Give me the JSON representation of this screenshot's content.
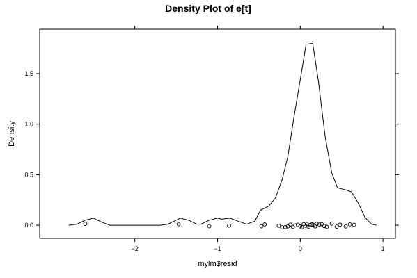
{
  "chart_data": {
    "type": "line",
    "title": "Density Plot of e[t]",
    "xlabel": "mylm$resid",
    "ylabel": "Density",
    "xlim": [
      -3.15,
      1.15
    ],
    "ylim": [
      -0.13,
      1.94
    ],
    "x_ticks": [
      {
        "value": -2,
        "label": "−2"
      },
      {
        "value": -1,
        "label": "−1"
      },
      {
        "value": 0,
        "label": "0"
      },
      {
        "value": 1,
        "label": "1"
      }
    ],
    "y_ticks": [
      {
        "value": 0.0,
        "label": "0.0"
      },
      {
        "value": 0.5,
        "label": "0.5"
      },
      {
        "value": 1.0,
        "label": "1.0"
      },
      {
        "value": 1.5,
        "label": "1.5"
      }
    ],
    "grid": false,
    "series": [
      {
        "kind": "density-line",
        "x": [
          -2.8,
          -2.7,
          -2.6,
          -2.5,
          -2.4,
          -2.3,
          -2.1,
          -1.9,
          -1.7,
          -1.6,
          -1.5,
          -1.45,
          -1.35,
          -1.25,
          -1.2,
          -1.1,
          -1.0,
          -0.95,
          -0.85,
          -0.75,
          -0.65,
          -0.55,
          -0.48,
          -0.38,
          -0.3,
          -0.22,
          -0.15,
          -0.08,
          0.0,
          0.07,
          0.15,
          0.22,
          0.3,
          0.38,
          0.45,
          0.55,
          0.62,
          0.7,
          0.78,
          0.86,
          0.92
        ],
        "y": [
          0.0,
          0.01,
          0.05,
          0.07,
          0.03,
          0.0,
          0.0,
          0.0,
          0.0,
          0.01,
          0.05,
          0.07,
          0.05,
          0.01,
          0.01,
          0.05,
          0.07,
          0.06,
          0.07,
          0.04,
          0.01,
          0.04,
          0.15,
          0.19,
          0.27,
          0.45,
          0.68,
          1.05,
          1.44,
          1.79,
          1.8,
          1.42,
          0.88,
          0.52,
          0.37,
          0.35,
          0.33,
          0.22,
          0.08,
          0.01,
          0.0
        ]
      },
      {
        "kind": "rug-points",
        "x": [
          -2.6,
          -1.47,
          -1.1,
          -0.86,
          -0.47,
          -0.43,
          -0.26,
          -0.22,
          -0.18,
          -0.15,
          -0.12,
          -0.09,
          -0.06,
          -0.03,
          0.0,
          0.02,
          0.04,
          0.06,
          0.08,
          0.1,
          0.12,
          0.14,
          0.16,
          0.18,
          0.2,
          0.23,
          0.26,
          0.29,
          0.32,
          0.38,
          0.44,
          0.48,
          0.55,
          0.6,
          0.65
        ],
        "y": [
          0.014,
          0.01,
          -0.01,
          -0.004,
          -0.01,
          0.008,
          -0.005,
          -0.02,
          -0.018,
          -0.012,
          0.006,
          -0.016,
          -0.002,
          0.004,
          -0.012,
          -0.018,
          0.01,
          -0.004,
          0.012,
          -0.016,
          0.002,
          0.008,
          0.004,
          -0.012,
          0.014,
          0.006,
          0.01,
          -0.008,
          -0.016,
          0.016,
          -0.014,
          0.006,
          -0.012,
          0.008,
          0.004
        ]
      }
    ]
  }
}
